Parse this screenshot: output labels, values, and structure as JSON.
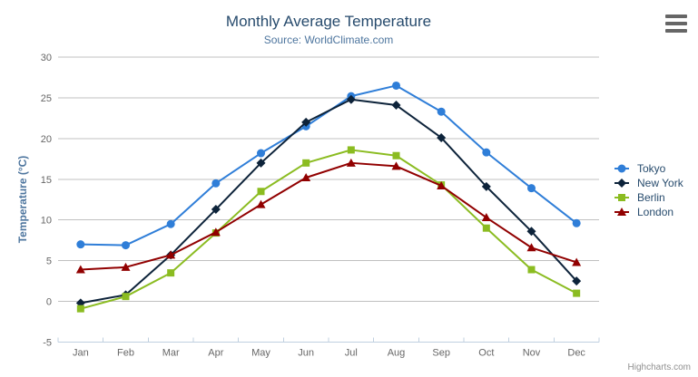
{
  "chart_data": {
    "type": "line",
    "title": "Monthly Average Temperature",
    "subtitle": "Source: WorldClimate.com",
    "xlabel": "",
    "ylabel": "Temperature (°C)",
    "categories": [
      "Jan",
      "Feb",
      "Mar",
      "Apr",
      "May",
      "Jun",
      "Jul",
      "Aug",
      "Sep",
      "Oct",
      "Nov",
      "Dec"
    ],
    "series": [
      {
        "name": "Tokyo",
        "color": "#2f7ed8",
        "marker": "circle",
        "values": [
          7.0,
          6.9,
          9.5,
          14.5,
          18.2,
          21.5,
          25.2,
          26.5,
          23.3,
          18.3,
          13.9,
          9.6
        ]
      },
      {
        "name": "New York",
        "color": "#0d233a",
        "marker": "diamond",
        "values": [
          -0.2,
          0.8,
          5.7,
          11.3,
          17.0,
          22.0,
          24.8,
          24.1,
          20.1,
          14.1,
          8.6,
          2.5
        ]
      },
      {
        "name": "Berlin",
        "color": "#8bbc21",
        "marker": "square",
        "values": [
          -0.9,
          0.6,
          3.5,
          8.4,
          13.5,
          17.0,
          18.6,
          17.9,
          14.3,
          9.0,
          3.9,
          1.0
        ]
      },
      {
        "name": "London",
        "color": "#910000",
        "marker": "triangle",
        "values": [
          3.9,
          4.2,
          5.7,
          8.5,
          11.9,
          15.2,
          17.0,
          16.6,
          14.2,
          10.3,
          6.6,
          4.8
        ]
      }
    ],
    "ylim": [
      -5,
      30
    ],
    "yticks": [
      -5,
      0,
      5,
      10,
      15,
      20,
      25,
      30
    ],
    "grid": "horizontal",
    "legend_position": "right"
  },
  "ui": {
    "credits_label": "Highcharts.com",
    "menu_icon": "hamburger-icon",
    "colors": {
      "title_text": "#274b6d",
      "subtitle_text": "#4d759e",
      "axis_title_text": "#4d759e",
      "axis_label_text": "#666666",
      "gridline": "#c0c0c0",
      "axis_line": "#c0d0e0",
      "legend_text": "#274b6d",
      "credits_text": "#909090",
      "menu_icon_color": "#666666",
      "background": "#ffffff"
    }
  }
}
